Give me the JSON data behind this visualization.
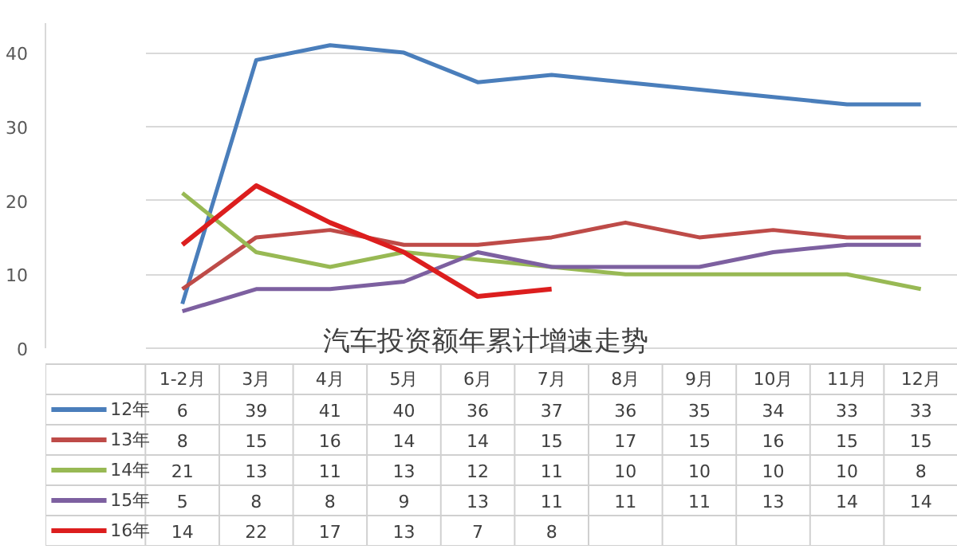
{
  "chart_data": {
    "type": "line",
    "title": "汽车投资额年累计增速走势",
    "categories": [
      "1-2月",
      "3月",
      "4月",
      "5月",
      "6月",
      "7月",
      "8月",
      "9月",
      "10月",
      "11月",
      "12月"
    ],
    "series": [
      {
        "name": "12年",
        "color": "#4a7ebb",
        "values": [
          6,
          39,
          41,
          40,
          36,
          37,
          36,
          35,
          34,
          33,
          33
        ]
      },
      {
        "name": "13年",
        "color": "#be4b48",
        "values": [
          8,
          15,
          16,
          14,
          14,
          15,
          17,
          15,
          16,
          15,
          15
        ]
      },
      {
        "name": "14年",
        "color": "#98b954",
        "values": [
          21,
          13,
          11,
          13,
          12,
          11,
          10,
          10,
          10,
          10,
          8
        ]
      },
      {
        "name": "15年",
        "color": "#7d60a0",
        "values": [
          5,
          8,
          8,
          9,
          13,
          11,
          11,
          11,
          13,
          14,
          14
        ]
      },
      {
        "name": "16年",
        "color": "#dc1e1e",
        "values": [
          14,
          22,
          17,
          13,
          7,
          8,
          null,
          null,
          null,
          null,
          null
        ]
      }
    ],
    "ylim": [
      0,
      44
    ],
    "yticks": [
      0,
      10,
      20,
      30,
      40
    ],
    "grid": "y",
    "legend": "bottom",
    "data_labels": true,
    "line_style": "solid",
    "marker": "none"
  }
}
